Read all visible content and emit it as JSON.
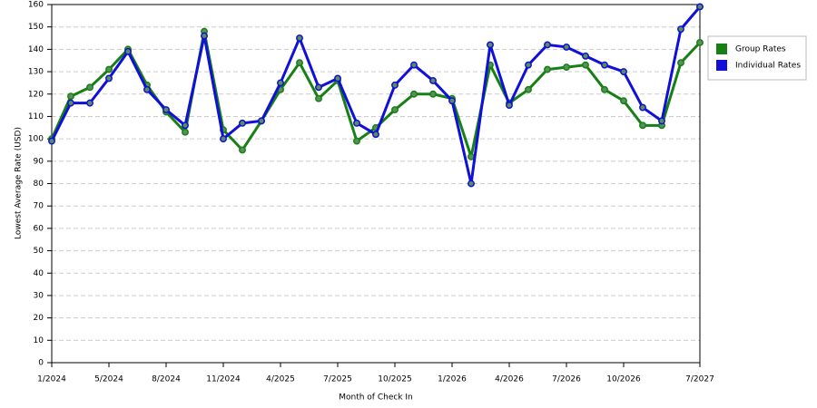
{
  "chart_data": {
    "type": "line",
    "x_label": "Month of Check In",
    "y_label": "Lowest Average Rate (USD)",
    "categories": [
      "1/2024",
      null,
      null,
      "5/2024",
      null,
      null,
      "8/2024",
      null,
      null,
      "11/2024",
      null,
      null,
      "4/2025",
      null,
      null,
      "7/2025",
      null,
      null,
      "10/2025",
      null,
      null,
      "1/2026",
      null,
      null,
      "4/2026",
      null,
      null,
      "7/2026",
      null,
      null,
      "10/2026",
      null,
      null,
      null,
      "7/2027"
    ],
    "series": [
      {
        "name": "Group Rates",
        "color": "#168016",
        "values": [
          100,
          119,
          123,
          131,
          140,
          124,
          112,
          103,
          148,
          104,
          95,
          108,
          122,
          134,
          118,
          126,
          99,
          105,
          113,
          120,
          120,
          118,
          92,
          133,
          116,
          122,
          131,
          132,
          133,
          122,
          117,
          106,
          106,
          134,
          143
        ]
      },
      {
        "name": "Individual Rates",
        "color": "#1010d8",
        "values": [
          99,
          116,
          116,
          127,
          139,
          122,
          113,
          106,
          146,
          100,
          107,
          108,
          125,
          145,
          123,
          127,
          107,
          102,
          124,
          133,
          126,
          117,
          80,
          142,
          115,
          133,
          142,
          141,
          137,
          133,
          130,
          114,
          108,
          149,
          159
        ]
      }
    ],
    "ylim": [
      0,
      160
    ],
    "yticks": [
      0,
      10,
      20,
      30,
      40,
      50,
      60,
      70,
      80,
      90,
      100,
      110,
      120,
      130,
      140,
      150,
      160
    ],
    "grid": true,
    "legend": "right"
  }
}
